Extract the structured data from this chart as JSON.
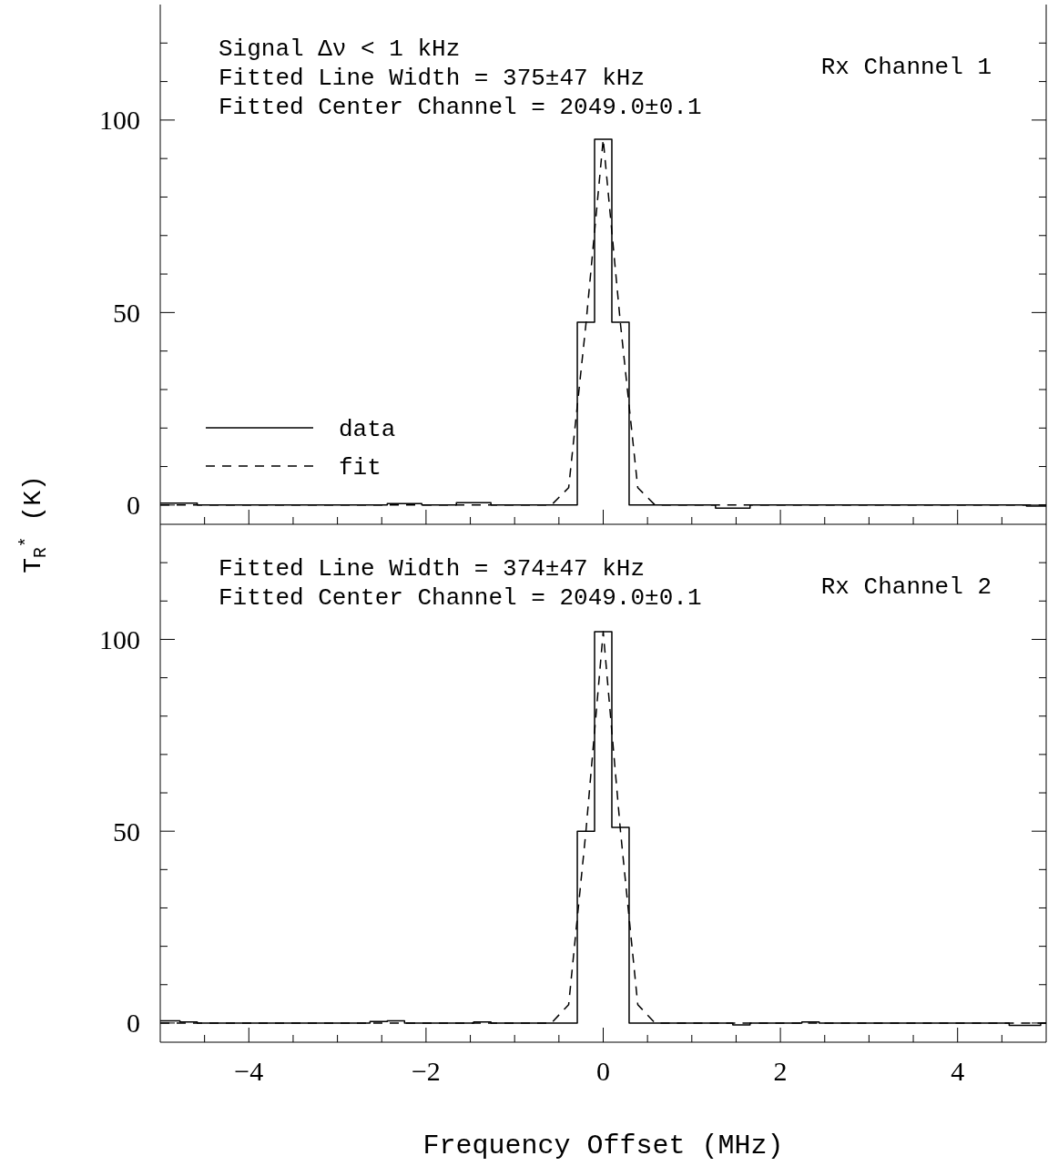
{
  "chart_data": [
    {
      "type": "step",
      "ylabel": "T$_{R}$$^{*}$ (K)",
      "annotations": [
        "Signal Δν < 1 kHz",
        "Fitted Line Width = 375±47 kHz",
        "Fitted Center Channel = 2049.0±0.1",
        "Rx Channel 1"
      ],
      "x": [
        -5,
        -4.875,
        -4.68,
        -4.485,
        -4.29,
        -4.095,
        -3.9,
        -3.705,
        -3.51,
        -3.315,
        -3.12,
        -2.925,
        -2.73,
        -2.535,
        -2.34,
        -2.145,
        -1.95,
        -1.755,
        -1.56,
        -1.365,
        -1.17,
        -0.975,
        -0.78,
        -0.585,
        -0.39,
        -0.195,
        0,
        0.195,
        0.39,
        0.585,
        0.78,
        0.975,
        1.17,
        1.365,
        1.56,
        1.755,
        1.95,
        2.145,
        2.34,
        2.535,
        2.73,
        2.925,
        3.12,
        3.315,
        3.51,
        3.705,
        3.9,
        4.095,
        4.29,
        4.485,
        4.68,
        4.875,
        5
      ],
      "series": [
        {
          "name": "data",
          "type": "step",
          "color": "#000000",
          "line_style": "solid",
          "values": [
            0.5,
            0.5,
            0.5,
            0,
            0,
            0,
            0,
            0,
            0,
            0,
            0,
            0,
            0,
            0,
            0.4,
            0.4,
            0,
            0,
            0.6,
            0.6,
            0,
            0,
            0,
            0,
            0,
            47.5,
            95,
            47.5,
            0,
            0,
            0,
            0,
            0,
            -0.8,
            -0.8,
            0,
            0,
            0,
            0,
            0,
            0,
            0,
            0,
            0,
            0,
            0,
            0,
            0,
            0,
            0,
            0,
            -0.3,
            -0.3
          ]
        },
        {
          "name": "fit",
          "type": "line",
          "color": "#000000",
          "line_style": "dashed",
          "values": [
            0,
            0,
            0,
            0,
            0,
            0,
            0,
            0,
            0,
            0,
            0,
            0,
            0,
            0,
            0,
            0,
            0,
            0,
            0,
            0,
            0,
            0,
            0,
            0,
            4.5,
            47,
            95,
            47,
            4.5,
            0,
            0,
            0,
            0,
            0,
            0,
            0,
            0,
            0,
            0,
            0,
            0,
            0,
            0,
            0,
            0,
            0,
            0,
            0,
            0,
            0,
            0,
            0,
            0
          ]
        }
      ],
      "legend": "bottom left",
      "xlim": [
        -5,
        5
      ],
      "ylim": [
        -5,
        130
      ],
      "tick_labels": "y",
      "xticks": [
        {
          "value": -4.5,
          "label": null
        },
        {
          "value": -4,
          "label": null
        },
        {
          "value": -3.5,
          "label": null
        },
        {
          "value": -3,
          "label": null
        },
        {
          "value": -2.5,
          "label": null
        },
        {
          "value": -2,
          "label": null
        },
        {
          "value": -1.5,
          "label": null
        },
        {
          "value": -1,
          "label": null
        },
        {
          "value": -0.5,
          "label": null
        },
        {
          "value": 0,
          "label": null
        },
        {
          "value": 0.5,
          "label": null
        },
        {
          "value": 1,
          "label": null
        },
        {
          "value": 1.5,
          "label": null
        },
        {
          "value": 2,
          "label": null
        },
        {
          "value": 2.5,
          "label": null
        },
        {
          "value": 3,
          "label": null
        },
        {
          "value": 3.5,
          "label": null
        },
        {
          "value": 4,
          "label": null
        },
        {
          "value": 4.5,
          "label": null
        }
      ],
      "yticks": [
        0,
        {
          "value": 10,
          "label": null
        },
        {
          "value": 20,
          "label": null
        },
        {
          "value": 30,
          "label": null
        },
        {
          "value": 40,
          "label": null
        },
        50,
        {
          "value": 60,
          "label": null
        },
        {
          "value": 70,
          "label": null
        },
        {
          "value": 80,
          "label": null
        },
        {
          "value": 90,
          "label": null
        },
        100,
        {
          "value": 110,
          "label": null
        },
        {
          "value": 120,
          "label": null
        }
      ]
    },
    {
      "type": "step",
      "xlabel": "Frequency Offset (MHz)",
      "annotations": [
        "Fitted Line Width = 374±47 kHz",
        "Fitted Center Channel = 2049.0±0.1",
        "Rx Channel 2"
      ],
      "x": [
        -5,
        -4.875,
        -4.68,
        -4.485,
        -4.29,
        -4.095,
        -3.9,
        -3.705,
        -3.51,
        -3.315,
        -3.12,
        -2.925,
        -2.73,
        -2.535,
        -2.34,
        -2.145,
        -1.95,
        -1.755,
        -1.56,
        -1.365,
        -1.17,
        -0.975,
        -0.78,
        -0.585,
        -0.39,
        -0.195,
        0,
        0.195,
        0.39,
        0.585,
        0.78,
        0.975,
        1.17,
        1.365,
        1.56,
        1.755,
        1.95,
        2.145,
        2.34,
        2.535,
        2.73,
        2.925,
        3.12,
        3.315,
        3.51,
        3.705,
        3.9,
        4.095,
        4.29,
        4.485,
        4.68,
        4.875,
        5
      ],
      "series": [
        {
          "type": "step",
          "color": "#000000",
          "line_style": "solid",
          "values": [
            0.6,
            0.6,
            0.3,
            0,
            0,
            0,
            0,
            0,
            0,
            0,
            0,
            0,
            0,
            0.4,
            0.6,
            0,
            0,
            0,
            0,
            0.3,
            0,
            0,
            0,
            0,
            0,
            50,
            102,
            51,
            0,
            0,
            0,
            0,
            0,
            0,
            -0.5,
            0,
            0,
            0,
            0.3,
            0,
            0,
            0,
            0,
            0,
            0,
            0,
            0,
            0,
            0,
            0,
            -0.6,
            -0.6,
            0
          ]
        },
        {
          "type": "line",
          "color": "#000000",
          "line_style": "dashed",
          "values": [
            0,
            0,
            0,
            0,
            0,
            0,
            0,
            0,
            0,
            0,
            0,
            0,
            0,
            0,
            0,
            0,
            0,
            0,
            0,
            0,
            0,
            0,
            0,
            0,
            4.8,
            50,
            102,
            50,
            4.8,
            0,
            0,
            0,
            0,
            0,
            0,
            0,
            0,
            0,
            0,
            0,
            0,
            0,
            0,
            0,
            0,
            0,
            0,
            0,
            0,
            0,
            0,
            0,
            0
          ]
        }
      ],
      "xlim": [
        -5,
        5
      ],
      "ylim": [
        -5,
        130
      ],
      "xticks": [
        {
          "value": -4.5,
          "label": null
        },
        {
          "value": -4,
          "label": "−4"
        },
        {
          "value": -3.5,
          "label": null
        },
        {
          "value": -3,
          "label": null
        },
        {
          "value": -2.5,
          "label": null
        },
        {
          "value": -2,
          "label": "−2"
        },
        {
          "value": -1.5,
          "label": null
        },
        {
          "value": -1,
          "label": null
        },
        {
          "value": -0.5,
          "label": null
        },
        0,
        {
          "value": 0.5,
          "label": null
        },
        {
          "value": 1,
          "label": null
        },
        {
          "value": 1.5,
          "label": null
        },
        2,
        {
          "value": 2.5,
          "label": null
        },
        {
          "value": 3,
          "label": null
        },
        {
          "value": 3.5,
          "label": null
        },
        4,
        {
          "value": 4.5,
          "label": null
        }
      ],
      "yticks": [
        0,
        {
          "value": 10,
          "label": null
        },
        {
          "value": 20,
          "label": null
        },
        {
          "value": 30,
          "label": null
        },
        {
          "value": 40,
          "label": null
        },
        50,
        {
          "value": 60,
          "label": null
        },
        {
          "value": 70,
          "label": null
        },
        {
          "value": 80,
          "label": null
        },
        {
          "value": 90,
          "label": null
        },
        100,
        {
          "value": 110,
          "label": null
        },
        {
          "value": 120,
          "label": null
        }
      ]
    }
  ]
}
